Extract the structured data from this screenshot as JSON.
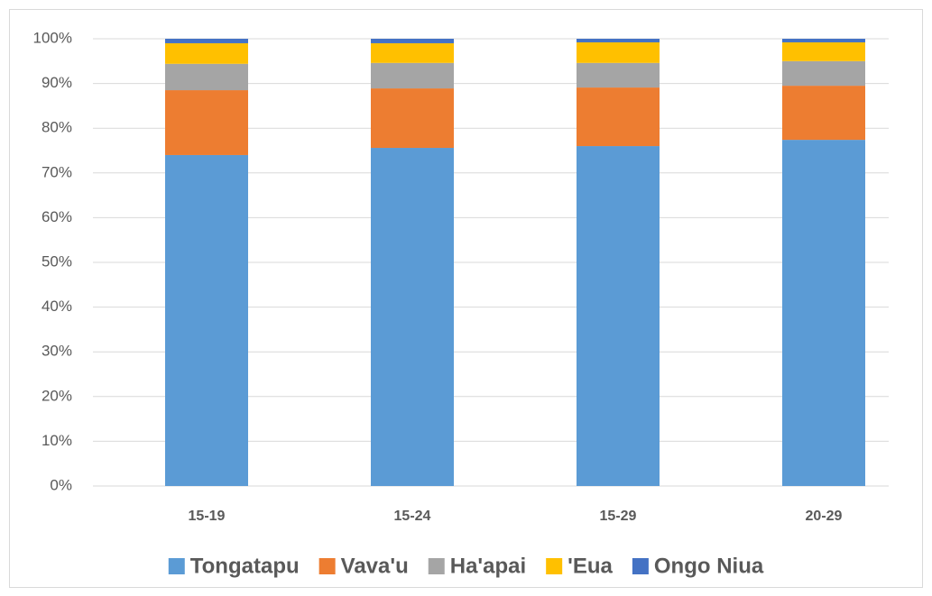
{
  "chart_data": {
    "type": "bar",
    "stacked": true,
    "categories": [
      "15-19",
      "15-24",
      "15-29",
      "20-29"
    ],
    "series": [
      {
        "name": "Tongatapu",
        "color": "#5b9bd5",
        "values": [
          74.0,
          75.6,
          76.0,
          77.4
        ]
      },
      {
        "name": "Vava'u",
        "color": "#ed7d31",
        "values": [
          14.5,
          13.3,
          13.1,
          12.1
        ]
      },
      {
        "name": "Ha'apai",
        "color": "#a5a5a5",
        "values": [
          5.9,
          5.7,
          5.5,
          5.5
        ]
      },
      {
        "name": "'Eua",
        "color": "#ffc000",
        "values": [
          4.6,
          4.4,
          4.6,
          4.2
        ]
      },
      {
        "name": "Ongo Niua",
        "color": "#4472c4",
        "values": [
          1.0,
          1.0,
          0.8,
          0.8
        ]
      }
    ],
    "ylim": [
      0,
      100
    ],
    "yticks": [
      {
        "value": 0,
        "label": "0%"
      },
      {
        "value": 10,
        "label": "10%"
      },
      {
        "value": 20,
        "label": "20%"
      },
      {
        "value": 30,
        "label": "30%"
      },
      {
        "value": 40,
        "label": "40%"
      },
      {
        "value": 50,
        "label": "50%"
      },
      {
        "value": 60,
        "label": "60%"
      },
      {
        "value": 70,
        "label": "70%"
      },
      {
        "value": 80,
        "label": "80%"
      },
      {
        "value": 90,
        "label": "90%"
      },
      {
        "value": 100,
        "label": "100%"
      }
    ],
    "grid": true,
    "legend": "bottom"
  }
}
